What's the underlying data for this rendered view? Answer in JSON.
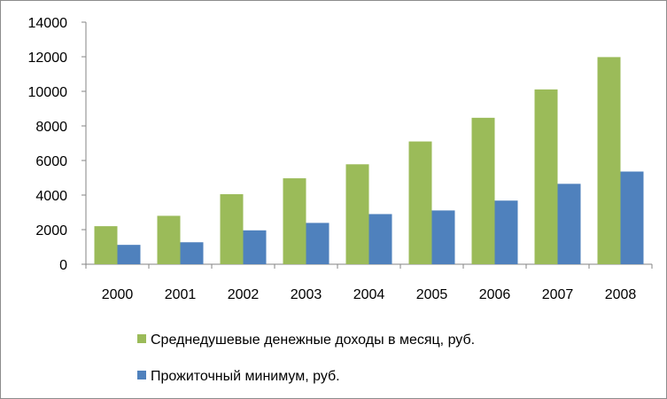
{
  "chart_data": {
    "type": "bar",
    "title": "",
    "xlabel": "",
    "ylabel": "",
    "categories": [
      "2000",
      "2001",
      "2002",
      "2003",
      "2004",
      "2005",
      "2006",
      "2007",
      "2008"
    ],
    "series": [
      {
        "name": "Среднедушевые денежные доходы в месяц, руб.",
        "color": "#9BBB59",
        "values": [
          2200,
          2800,
          4050,
          4970,
          5780,
          7100,
          8470,
          10110,
          11980
        ]
      },
      {
        "name": "Прожиточный минимум, руб.",
        "color": "#4F81BD",
        "values": [
          1120,
          1270,
          1960,
          2390,
          2900,
          3110,
          3680,
          4650,
          5360
        ]
      }
    ],
    "ylim": [
      0,
      14000
    ],
    "yticks": [
      "0",
      "2000",
      "4000",
      "6000",
      "8000",
      "10000",
      "12000",
      "14000"
    ],
    "grid": false,
    "legend_position": "bottom"
  }
}
